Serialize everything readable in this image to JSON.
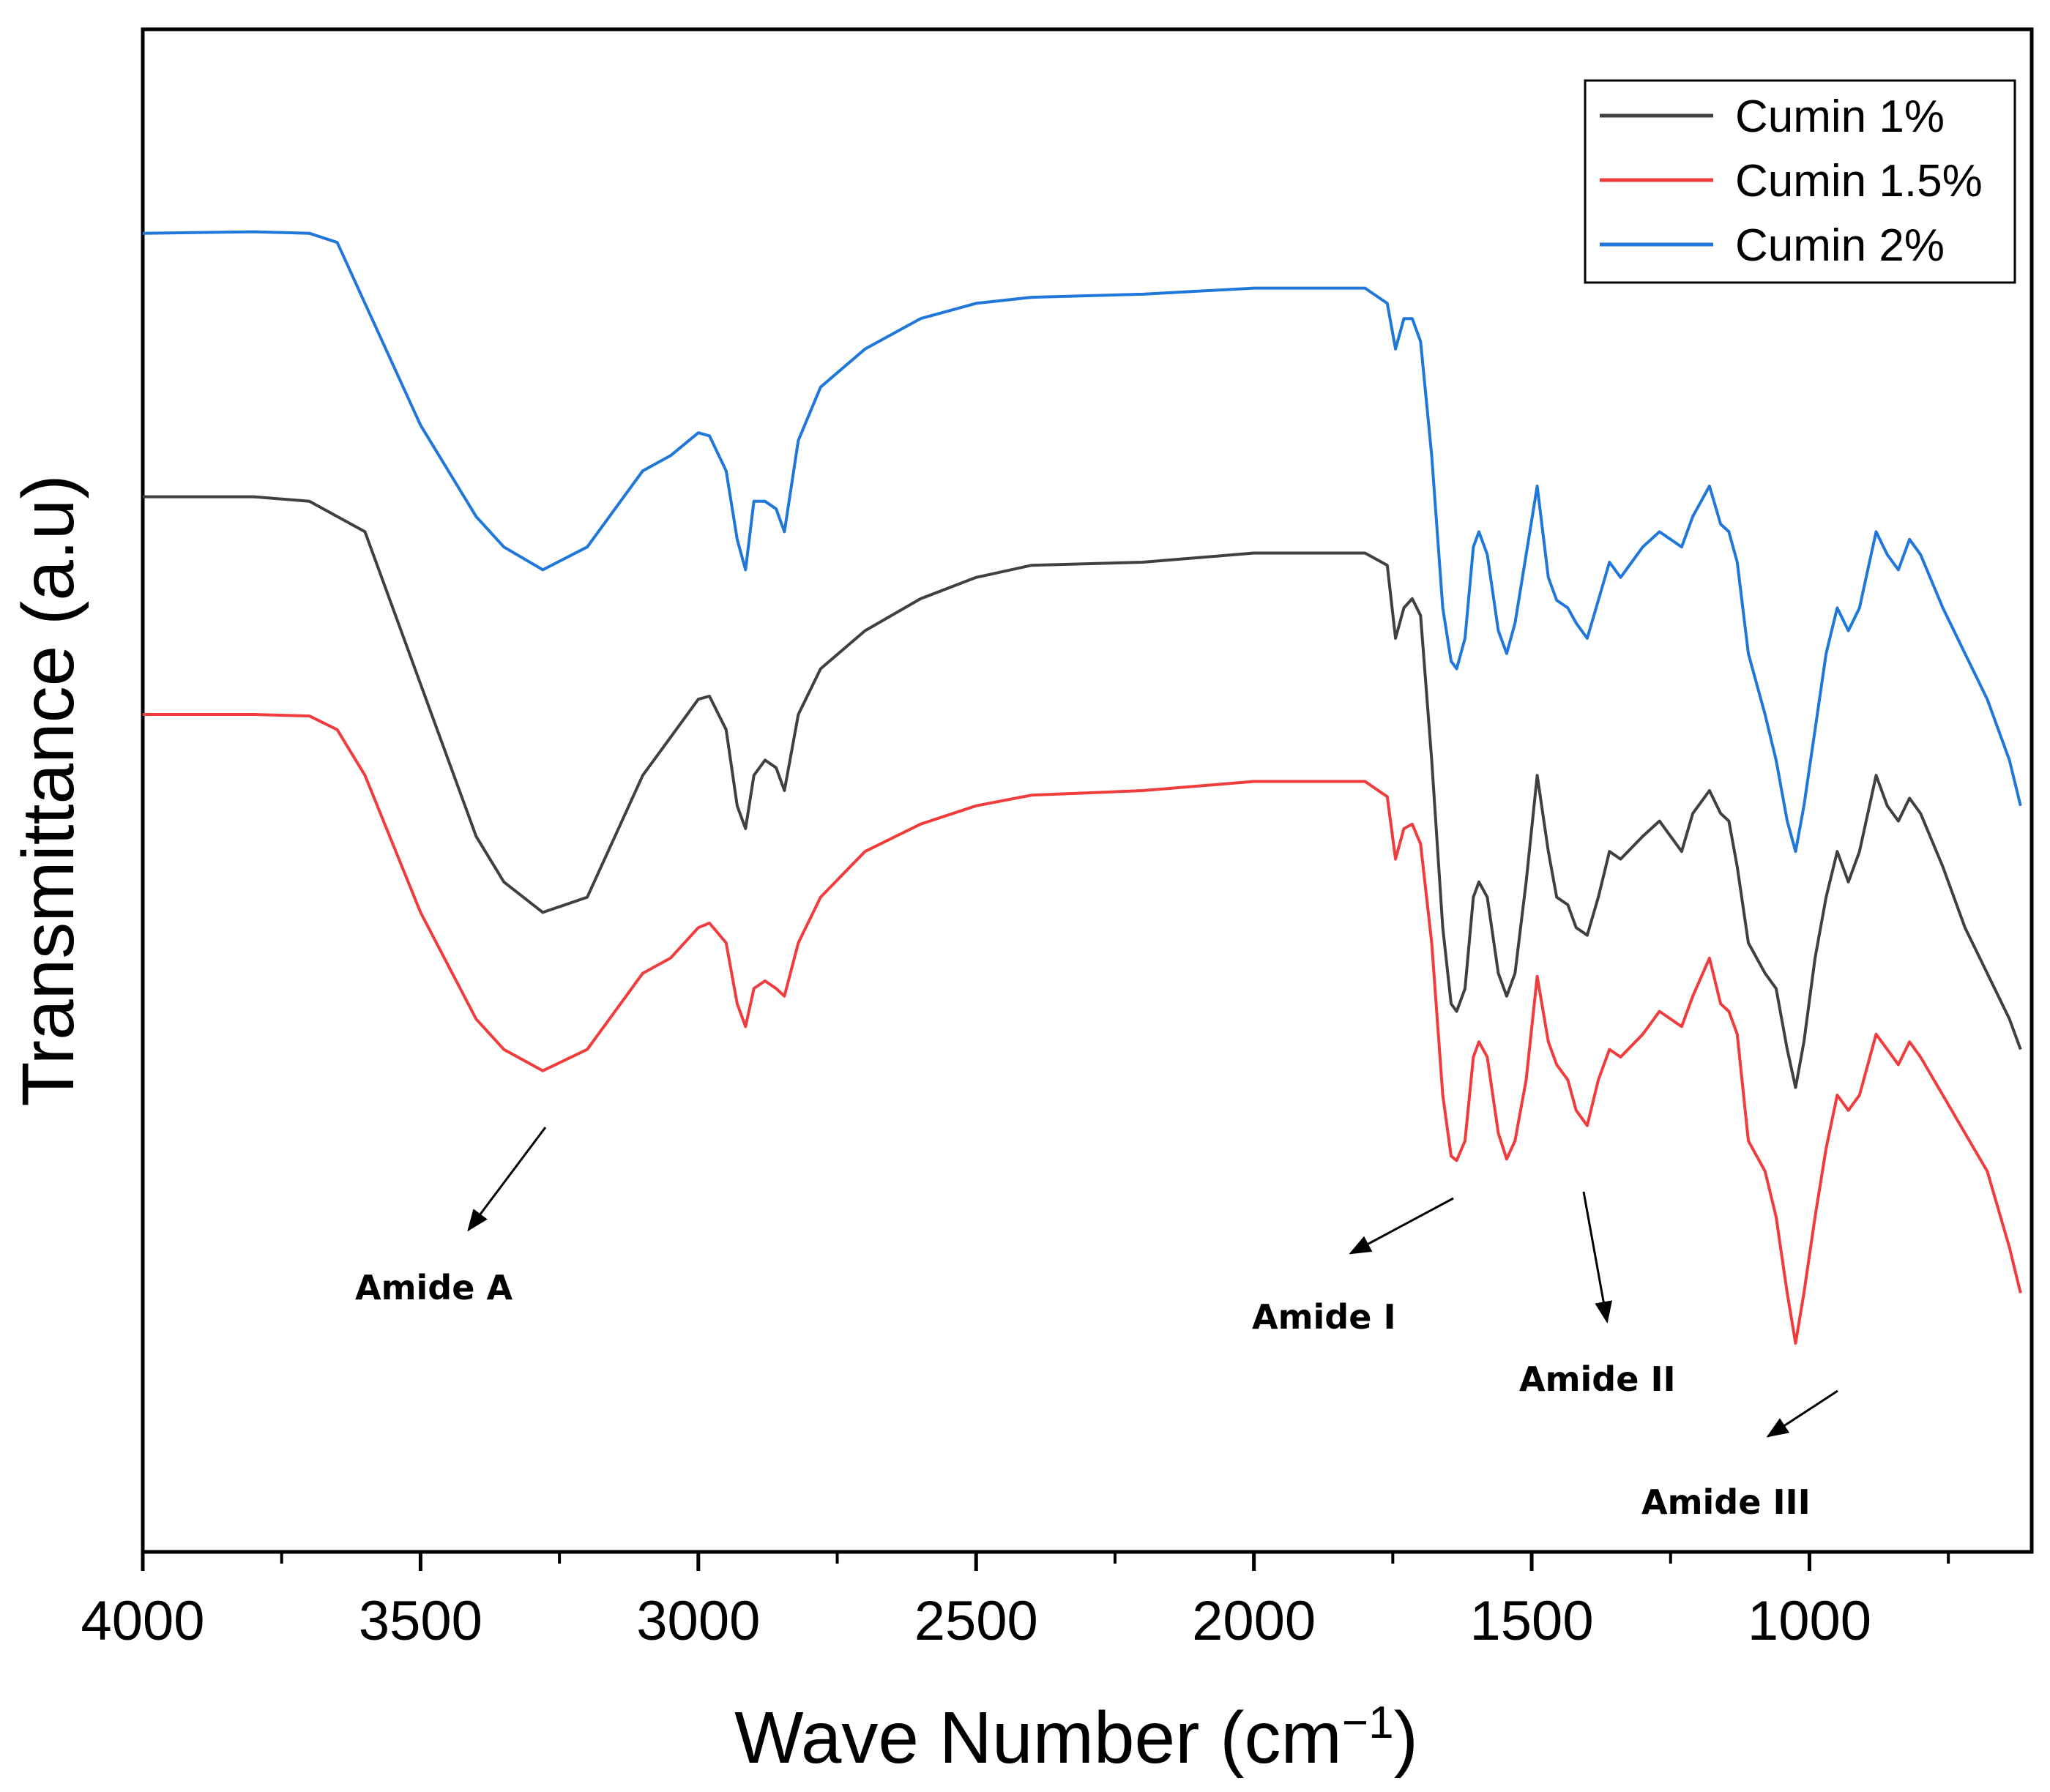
{
  "chart_data": {
    "type": "line",
    "title": "",
    "xlabel": "Wave Number (cm",
    "xlabel_sup": "−1",
    "xlabel_suffix": ")",
    "ylabel": "Transmittance (a.u)",
    "xlim": [
      4000,
      600
    ],
    "ylim": [
      0,
      1
    ],
    "x_ticks": [
      4000,
      3500,
      3000,
      2500,
      2000,
      1500,
      1000
    ],
    "x_tick_labels": [
      "4000",
      "3500",
      "3000",
      "2500",
      "2000",
      "1500",
      "1000"
    ],
    "y_ticks_visible": false,
    "grid": false,
    "legend_position": "top-right",
    "series": [
      {
        "name": "Cumin 1%",
        "color": "#404040",
        "points": [
          [
            4000,
            0.693
          ],
          [
            3800,
            0.693
          ],
          [
            3700,
            0.69
          ],
          [
            3600,
            0.67
          ],
          [
            3500,
            0.57
          ],
          [
            3400,
            0.47
          ],
          [
            3350,
            0.44
          ],
          [
            3280,
            0.42
          ],
          [
            3200,
            0.43
          ],
          [
            3100,
            0.51
          ],
          [
            3050,
            0.535
          ],
          [
            3000,
            0.56
          ],
          [
            2980,
            0.562
          ],
          [
            2950,
            0.54
          ],
          [
            2930,
            0.49
          ],
          [
            2915,
            0.475
          ],
          [
            2900,
            0.51
          ],
          [
            2880,
            0.52
          ],
          [
            2860,
            0.515
          ],
          [
            2845,
            0.5
          ],
          [
            2820,
            0.55
          ],
          [
            2780,
            0.58
          ],
          [
            2700,
            0.605
          ],
          [
            2600,
            0.626
          ],
          [
            2500,
            0.64
          ],
          [
            2400,
            0.648
          ],
          [
            2200,
            0.65
          ],
          [
            2000,
            0.656
          ],
          [
            1800,
            0.656
          ],
          [
            1760,
            0.648
          ],
          [
            1745,
            0.6
          ],
          [
            1730,
            0.62
          ],
          [
            1715,
            0.626
          ],
          [
            1700,
            0.615
          ],
          [
            1680,
            0.52
          ],
          [
            1660,
            0.41
          ],
          [
            1645,
            0.36
          ],
          [
            1635,
            0.355
          ],
          [
            1620,
            0.37
          ],
          [
            1605,
            0.43
          ],
          [
            1595,
            0.44
          ],
          [
            1580,
            0.43
          ],
          [
            1560,
            0.38
          ],
          [
            1545,
            0.365
          ],
          [
            1530,
            0.38
          ],
          [
            1510,
            0.44
          ],
          [
            1490,
            0.51
          ],
          [
            1470,
            0.46
          ],
          [
            1455,
            0.43
          ],
          [
            1435,
            0.425
          ],
          [
            1420,
            0.41
          ],
          [
            1400,
            0.405
          ],
          [
            1380,
            0.43
          ],
          [
            1360,
            0.46
          ],
          [
            1340,
            0.455
          ],
          [
            1300,
            0.47
          ],
          [
            1270,
            0.48
          ],
          [
            1250,
            0.47
          ],
          [
            1230,
            0.46
          ],
          [
            1210,
            0.485
          ],
          [
            1180,
            0.5
          ],
          [
            1160,
            0.485
          ],
          [
            1145,
            0.48
          ],
          [
            1130,
            0.45
          ],
          [
            1110,
            0.4
          ],
          [
            1080,
            0.38
          ],
          [
            1060,
            0.37
          ],
          [
            1040,
            0.33
          ],
          [
            1025,
            0.305
          ],
          [
            1010,
            0.335
          ],
          [
            990,
            0.39
          ],
          [
            970,
            0.43
          ],
          [
            950,
            0.46
          ],
          [
            930,
            0.44
          ],
          [
            910,
            0.46
          ],
          [
            880,
            0.51
          ],
          [
            860,
            0.49
          ],
          [
            840,
            0.48
          ],
          [
            820,
            0.495
          ],
          [
            800,
            0.485
          ],
          [
            760,
            0.45
          ],
          [
            720,
            0.41
          ],
          [
            680,
            0.38
          ],
          [
            640,
            0.35
          ],
          [
            620,
            0.33
          ]
        ]
      },
      {
        "name": "Cumin 1.5%",
        "color": "#f03c3c",
        "points": [
          [
            4000,
            0.55
          ],
          [
            3800,
            0.55
          ],
          [
            3700,
            0.549
          ],
          [
            3650,
            0.54
          ],
          [
            3600,
            0.51
          ],
          [
            3500,
            0.42
          ],
          [
            3400,
            0.35
          ],
          [
            3350,
            0.33
          ],
          [
            3280,
            0.316
          ],
          [
            3200,
            0.33
          ],
          [
            3100,
            0.38
          ],
          [
            3050,
            0.39
          ],
          [
            3000,
            0.41
          ],
          [
            2980,
            0.413
          ],
          [
            2950,
            0.4
          ],
          [
            2930,
            0.36
          ],
          [
            2915,
            0.345
          ],
          [
            2900,
            0.37
          ],
          [
            2880,
            0.375
          ],
          [
            2860,
            0.37
          ],
          [
            2845,
            0.365
          ],
          [
            2820,
            0.4
          ],
          [
            2780,
            0.43
          ],
          [
            2700,
            0.46
          ],
          [
            2600,
            0.478
          ],
          [
            2500,
            0.49
          ],
          [
            2400,
            0.497
          ],
          [
            2200,
            0.5
          ],
          [
            2000,
            0.506
          ],
          [
            1800,
            0.506
          ],
          [
            1760,
            0.496
          ],
          [
            1745,
            0.455
          ],
          [
            1730,
            0.475
          ],
          [
            1715,
            0.478
          ],
          [
            1700,
            0.465
          ],
          [
            1680,
            0.4
          ],
          [
            1660,
            0.3
          ],
          [
            1645,
            0.26
          ],
          [
            1635,
            0.257
          ],
          [
            1620,
            0.27
          ],
          [
            1605,
            0.325
          ],
          [
            1595,
            0.335
          ],
          [
            1580,
            0.325
          ],
          [
            1560,
            0.275
          ],
          [
            1545,
            0.258
          ],
          [
            1530,
            0.27
          ],
          [
            1510,
            0.31
          ],
          [
            1490,
            0.378
          ],
          [
            1470,
            0.335
          ],
          [
            1455,
            0.32
          ],
          [
            1435,
            0.31
          ],
          [
            1420,
            0.29
          ],
          [
            1400,
            0.28
          ],
          [
            1380,
            0.31
          ],
          [
            1360,
            0.33
          ],
          [
            1340,
            0.325
          ],
          [
            1300,
            0.34
          ],
          [
            1270,
            0.355
          ],
          [
            1250,
            0.35
          ],
          [
            1230,
            0.345
          ],
          [
            1210,
            0.365
          ],
          [
            1180,
            0.39
          ],
          [
            1160,
            0.36
          ],
          [
            1145,
            0.355
          ],
          [
            1130,
            0.34
          ],
          [
            1110,
            0.27
          ],
          [
            1080,
            0.25
          ],
          [
            1060,
            0.22
          ],
          [
            1040,
            0.17
          ],
          [
            1025,
            0.137
          ],
          [
            1010,
            0.17
          ],
          [
            990,
            0.22
          ],
          [
            970,
            0.265
          ],
          [
            950,
            0.3
          ],
          [
            930,
            0.29
          ],
          [
            910,
            0.3
          ],
          [
            880,
            0.34
          ],
          [
            860,
            0.33
          ],
          [
            840,
            0.32
          ],
          [
            820,
            0.335
          ],
          [
            800,
            0.325
          ],
          [
            760,
            0.3
          ],
          [
            720,
            0.275
          ],
          [
            680,
            0.25
          ],
          [
            640,
            0.2
          ],
          [
            620,
            0.17
          ]
        ]
      },
      {
        "name": "Cumin 2%",
        "color": "#1f77d9",
        "points": [
          [
            4000,
            0.866
          ],
          [
            3800,
            0.867
          ],
          [
            3700,
            0.866
          ],
          [
            3650,
            0.86
          ],
          [
            3600,
            0.82
          ],
          [
            3500,
            0.74
          ],
          [
            3400,
            0.68
          ],
          [
            3350,
            0.66
          ],
          [
            3280,
            0.645
          ],
          [
            3200,
            0.66
          ],
          [
            3100,
            0.71
          ],
          [
            3050,
            0.72
          ],
          [
            3000,
            0.735
          ],
          [
            2980,
            0.733
          ],
          [
            2950,
            0.71
          ],
          [
            2930,
            0.665
          ],
          [
            2915,
            0.645
          ],
          [
            2900,
            0.69
          ],
          [
            2880,
            0.69
          ],
          [
            2860,
            0.685
          ],
          [
            2845,
            0.67
          ],
          [
            2820,
            0.73
          ],
          [
            2780,
            0.765
          ],
          [
            2700,
            0.79
          ],
          [
            2600,
            0.81
          ],
          [
            2500,
            0.82
          ],
          [
            2400,
            0.824
          ],
          [
            2200,
            0.826
          ],
          [
            2000,
            0.83
          ],
          [
            1800,
            0.83
          ],
          [
            1760,
            0.82
          ],
          [
            1745,
            0.79
          ],
          [
            1730,
            0.81
          ],
          [
            1715,
            0.81
          ],
          [
            1700,
            0.795
          ],
          [
            1680,
            0.72
          ],
          [
            1660,
            0.62
          ],
          [
            1645,
            0.585
          ],
          [
            1635,
            0.58
          ],
          [
            1620,
            0.6
          ],
          [
            1605,
            0.66
          ],
          [
            1595,
            0.67
          ],
          [
            1580,
            0.655
          ],
          [
            1560,
            0.605
          ],
          [
            1545,
            0.59
          ],
          [
            1530,
            0.61
          ],
          [
            1510,
            0.655
          ],
          [
            1490,
            0.7
          ],
          [
            1470,
            0.64
          ],
          [
            1455,
            0.625
          ],
          [
            1435,
            0.62
          ],
          [
            1420,
            0.61
          ],
          [
            1400,
            0.6
          ],
          [
            1380,
            0.625
          ],
          [
            1360,
            0.65
          ],
          [
            1340,
            0.64
          ],
          [
            1300,
            0.66
          ],
          [
            1270,
            0.67
          ],
          [
            1250,
            0.665
          ],
          [
            1230,
            0.66
          ],
          [
            1210,
            0.68
          ],
          [
            1180,
            0.7
          ],
          [
            1160,
            0.675
          ],
          [
            1145,
            0.67
          ],
          [
            1130,
            0.65
          ],
          [
            1110,
            0.59
          ],
          [
            1080,
            0.55
          ],
          [
            1060,
            0.52
          ],
          [
            1040,
            0.48
          ],
          [
            1025,
            0.46
          ],
          [
            1010,
            0.49
          ],
          [
            990,
            0.54
          ],
          [
            970,
            0.59
          ],
          [
            950,
            0.62
          ],
          [
            930,
            0.605
          ],
          [
            910,
            0.62
          ],
          [
            880,
            0.67
          ],
          [
            860,
            0.655
          ],
          [
            840,
            0.645
          ],
          [
            820,
            0.665
          ],
          [
            800,
            0.655
          ],
          [
            760,
            0.62
          ],
          [
            720,
            0.59
          ],
          [
            680,
            0.56
          ],
          [
            640,
            0.52
          ],
          [
            620,
            0.49
          ]
        ]
      }
    ],
    "annotations": [
      {
        "text": "Amide A"
      },
      {
        "text": "Amide I"
      },
      {
        "text": "Amide II"
      },
      {
        "text": "Amide III"
      }
    ]
  }
}
